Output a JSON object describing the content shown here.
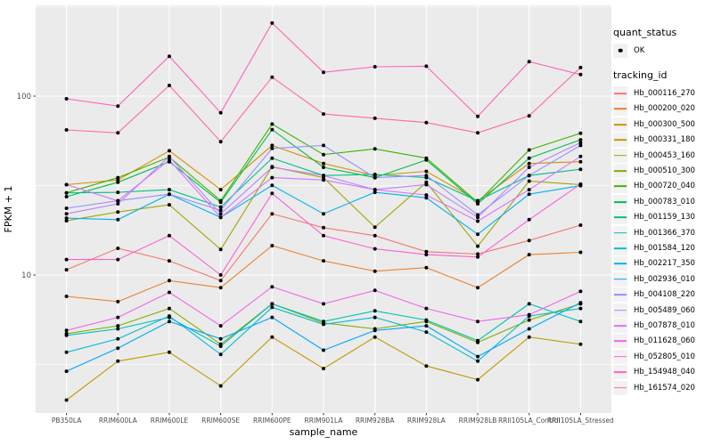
{
  "style": {
    "panel_bg": "#EBEBEB",
    "grid_color": "#FFFFFF",
    "key_bg": "#F2F2F2",
    "point_color": "#000000",
    "tick_label_color": "#4D4D4D",
    "axis_title_color": "#000000",
    "tick_mark_color": "#333333"
  },
  "chart_data": {
    "type": "line",
    "title": "",
    "xlabel": "sample_name",
    "ylabel": "FPKM + 1",
    "x_categories": [
      "PB350LA",
      "RRIM600LA",
      "RRIM600LE",
      "RRIM600SE",
      "RRIM600PE",
      "RRIM901LA",
      "RRIM928BA",
      "RRIM928LA",
      "RRIM928LB",
      "RRII105LA_Control",
      "RRII105LA_Stressed"
    ],
    "y_axis": {
      "scale": "log10",
      "major_ticks": [
        100,
        10
      ],
      "minor_ticks": [
        316,
        31.6,
        3.16
      ],
      "range_approx": [
        1.7,
        320
      ]
    },
    "grid": "on",
    "legend_position": "right",
    "legend": {
      "quant_title": "quant_status",
      "quant_marker": "point",
      "quant_entries": [
        "OK"
      ],
      "series_title": "tracking_id"
    },
    "series": [
      {
        "name": "Hb_000116_270",
        "color": "#F8766D",
        "values": [
          10.7,
          14.1,
          12.0,
          9.3,
          22.0,
          18.4,
          16.6,
          13.5,
          13.1,
          15.6,
          19.0
        ]
      },
      {
        "name": "Hb_000200_020",
        "color": "#EA8331",
        "values": [
          7.6,
          7.1,
          9.3,
          8.5,
          14.6,
          12.0,
          10.5,
          11.0,
          8.5,
          13.0,
          13.4
        ]
      },
      {
        "name": "Hb_000300_500",
        "color": "#D89000",
        "values": [
          32,
          34,
          49.5,
          30,
          53,
          42,
          36,
          38,
          26,
          42,
          43
        ]
      },
      {
        "name": "Hb_000331_180",
        "color": "#C09B00",
        "values": [
          2.0,
          3.3,
          3.7,
          2.4,
          4.5,
          3.0,
          4.5,
          3.1,
          2.6,
          4.5,
          4.1
        ]
      },
      {
        "name": "Hb_000453_160",
        "color": "#A3A500",
        "values": [
          20.1,
          22.5,
          24.7,
          13.9,
          40.3,
          35,
          18.5,
          33,
          14.5,
          33.5,
          32
        ]
      },
      {
        "name": "Hb_000510_300",
        "color": "#7CAE00",
        "values": [
          4.7,
          5.2,
          6.5,
          4.1,
          6.9,
          5.4,
          5.0,
          5.5,
          4.2,
          5.6,
          6.9
        ]
      },
      {
        "name": "Hb_000720_040",
        "color": "#39B600",
        "values": [
          28.8,
          35,
          45.6,
          26,
          69.8,
          47.1,
          50.7,
          45,
          25.5,
          50,
          62
        ]
      },
      {
        "name": "Hb_000783_010",
        "color": "#00BB4E",
        "values": [
          27.4,
          33,
          43,
          25.5,
          65,
          40,
          35,
          44,
          25,
          45,
          57
        ]
      },
      {
        "name": "Hb_001159_130",
        "color": "#00C087",
        "values": [
          28.8,
          29,
          30,
          24,
          45,
          36,
          36.5,
          35,
          26,
          36,
          39
        ]
      },
      {
        "name": "Hb_001366_370",
        "color": "#00C0B2",
        "values": [
          4.6,
          5.0,
          5.8,
          4.0,
          6.9,
          5.5,
          6.3,
          5.6,
          4.3,
          6.9,
          5.5
        ]
      },
      {
        "name": "Hb_001584_120",
        "color": "#00BCD8",
        "values": [
          3.7,
          4.4,
          5.9,
          3.6,
          6.6,
          5.3,
          5.8,
          4.8,
          3.3,
          5.9,
          6.5
        ]
      },
      {
        "name": "Hb_002217_350",
        "color": "#00B0F6",
        "values": [
          20.8,
          20.4,
          28.3,
          21,
          31.7,
          22,
          29,
          27,
          16.9,
          28.3,
          31.6
        ]
      },
      {
        "name": "Hb_002936_010",
        "color": "#00A5FF",
        "values": [
          2.9,
          3.9,
          5.5,
          4.4,
          5.8,
          3.8,
          4.9,
          5.2,
          3.5,
          5.0,
          7.0
        ]
      },
      {
        "name": "Hb_004108_220",
        "color": "#9590FF",
        "values": [
          23.6,
          26,
          28.3,
          23,
          51,
          53,
          35,
          36,
          21.7,
          36,
          53
        ]
      },
      {
        "name": "Hb_005489_060",
        "color": "#BC81FF",
        "values": [
          22,
          25,
          46,
          22,
          40,
          36,
          30,
          32,
          21,
          40,
          55
        ]
      },
      {
        "name": "Hb_007878_010",
        "color": "#D575FE",
        "values": [
          32,
          26,
          44,
          21,
          35,
          34,
          30,
          28,
          20,
          30,
          46
        ]
      },
      {
        "name": "Hb_011628_060",
        "color": "#EF67EB",
        "values": [
          4.9,
          5.8,
          8.0,
          5.2,
          8.6,
          6.9,
          8.2,
          6.5,
          5.5,
          6.0,
          8.1
        ]
      },
      {
        "name": "Hb_052805_010",
        "color": "#FB61D7",
        "values": [
          12.2,
          12.2,
          16.6,
          10.0,
          28.6,
          16.6,
          14.0,
          13.0,
          12.6,
          20.4,
          32.2
        ]
      },
      {
        "name": "Hb_154948_040",
        "color": "#FF62BC",
        "values": [
          96.6,
          88,
          167,
          80.7,
          256,
          136,
          146,
          147,
          77,
          156,
          132
        ]
      },
      {
        "name": "Hb_161574_020",
        "color": "#FF6B96",
        "values": [
          64.7,
          62.3,
          114.8,
          55.6,
          127.6,
          79.4,
          75.2,
          71.2,
          62.3,
          77.6,
          144.5
        ]
      }
    ]
  }
}
